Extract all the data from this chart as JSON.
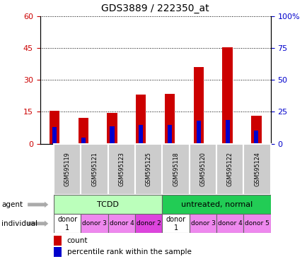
{
  "title": "GDS3889 / 222350_at",
  "samples": [
    "GSM595119",
    "GSM595121",
    "GSM595123",
    "GSM595125",
    "GSM595118",
    "GSM595120",
    "GSM595122",
    "GSM595124"
  ],
  "counts": [
    15.5,
    12.0,
    14.5,
    23.0,
    23.5,
    36.0,
    45.5,
    13.0
  ],
  "percentile_ranks": [
    13.0,
    4.5,
    13.5,
    14.5,
    14.5,
    18.0,
    18.5,
    10.5
  ],
  "bar_color": "#cc0000",
  "pct_color": "#0000cc",
  "ylim_left": [
    0,
    60
  ],
  "ylim_right": [
    0,
    100
  ],
  "yticks_left": [
    0,
    15,
    30,
    45,
    60
  ],
  "yticks_right": [
    0,
    25,
    50,
    75,
    100
  ],
  "yticklabels_right": [
    "0",
    "25",
    "50",
    "75",
    "100%"
  ],
  "agent_groups": [
    {
      "label": "TCDD",
      "start": 0,
      "end": 4,
      "color": "#bbffbb"
    },
    {
      "label": "untreated, normal",
      "start": 4,
      "end": 8,
      "color": "#22cc55"
    }
  ],
  "individuals": [
    {
      "label": "donor\n1",
      "color": "#ffffff",
      "start": 0,
      "end": 1
    },
    {
      "label": "donor 3",
      "color": "#ee88ee",
      "start": 1,
      "end": 2
    },
    {
      "label": "donor 4",
      "color": "#ee88ee",
      "start": 2,
      "end": 3
    },
    {
      "label": "donor 2",
      "color": "#dd44dd",
      "start": 3,
      "end": 4
    },
    {
      "label": "donor\n1",
      "color": "#ffffff",
      "start": 4,
      "end": 5
    },
    {
      "label": "donor 3",
      "color": "#ee88ee",
      "start": 5,
      "end": 6
    },
    {
      "label": "donor 4",
      "color": "#ee88ee",
      "start": 6,
      "end": 7
    },
    {
      "label": "donor 5",
      "color": "#ee88ee",
      "start": 7,
      "end": 8
    }
  ],
  "bar_width": 0.35,
  "pct_bar_width": 0.15
}
